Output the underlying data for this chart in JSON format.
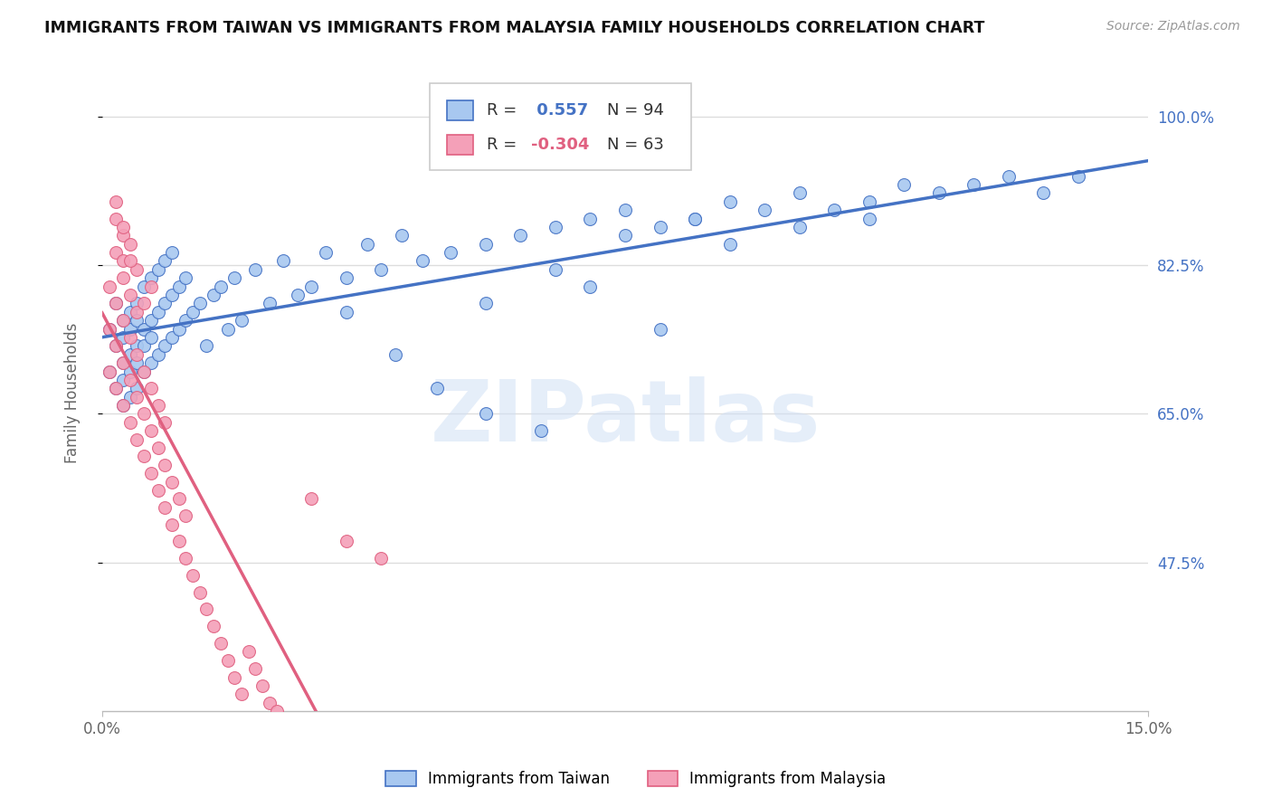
{
  "title": "IMMIGRANTS FROM TAIWAN VS IMMIGRANTS FROM MALAYSIA FAMILY HOUSEHOLDS CORRELATION CHART",
  "source": "Source: ZipAtlas.com",
  "ylabel": "Family Households",
  "xlim": [
    0.0,
    0.15
  ],
  "ylim": [
    0.3,
    1.05
  ],
  "yticks": [
    0.475,
    0.65,
    0.825,
    1.0
  ],
  "ytick_labels": [
    "47.5%",
    "65.0%",
    "82.5%",
    "100.0%"
  ],
  "xticks": [
    0.0,
    0.15
  ],
  "xtick_labels": [
    "0.0%",
    "15.0%"
  ],
  "taiwan_R": 0.557,
  "taiwan_N": 94,
  "malaysia_R": -0.304,
  "malaysia_N": 63,
  "taiwan_color": "#A8C8F0",
  "malaysia_color": "#F4A0B8",
  "taiwan_line_color": "#4472C4",
  "malaysia_line_color": "#E06080",
  "watermark_text": "ZIPatlas",
  "background_color": "#ffffff",
  "grid_color": "#dddddd",
  "taiwan_x": [
    0.001,
    0.001,
    0.002,
    0.002,
    0.002,
    0.003,
    0.003,
    0.003,
    0.003,
    0.003,
    0.004,
    0.004,
    0.004,
    0.004,
    0.004,
    0.005,
    0.005,
    0.005,
    0.005,
    0.005,
    0.006,
    0.006,
    0.006,
    0.006,
    0.007,
    0.007,
    0.007,
    0.007,
    0.008,
    0.008,
    0.008,
    0.009,
    0.009,
    0.009,
    0.01,
    0.01,
    0.01,
    0.011,
    0.011,
    0.012,
    0.012,
    0.013,
    0.014,
    0.015,
    0.016,
    0.017,
    0.018,
    0.019,
    0.02,
    0.022,
    0.024,
    0.026,
    0.028,
    0.03,
    0.032,
    0.035,
    0.038,
    0.04,
    0.043,
    0.046,
    0.05,
    0.055,
    0.06,
    0.065,
    0.07,
    0.075,
    0.08,
    0.085,
    0.09,
    0.095,
    0.1,
    0.105,
    0.11,
    0.115,
    0.12,
    0.125,
    0.13,
    0.135,
    0.14,
    0.035,
    0.042,
    0.048,
    0.055,
    0.063,
    0.07,
    0.08,
    0.09,
    0.1,
    0.11,
    0.055,
    0.065,
    0.075,
    0.085
  ],
  "taiwan_y": [
    0.7,
    0.75,
    0.68,
    0.73,
    0.78,
    0.66,
    0.71,
    0.76,
    0.69,
    0.74,
    0.67,
    0.72,
    0.77,
    0.7,
    0.75,
    0.68,
    0.73,
    0.78,
    0.71,
    0.76,
    0.7,
    0.75,
    0.8,
    0.73,
    0.71,
    0.76,
    0.81,
    0.74,
    0.72,
    0.77,
    0.82,
    0.73,
    0.78,
    0.83,
    0.74,
    0.79,
    0.84,
    0.75,
    0.8,
    0.76,
    0.81,
    0.77,
    0.78,
    0.73,
    0.79,
    0.8,
    0.75,
    0.81,
    0.76,
    0.82,
    0.78,
    0.83,
    0.79,
    0.8,
    0.84,
    0.81,
    0.85,
    0.82,
    0.86,
    0.83,
    0.84,
    0.85,
    0.86,
    0.87,
    0.88,
    0.89,
    0.87,
    0.88,
    0.9,
    0.89,
    0.91,
    0.89,
    0.9,
    0.92,
    0.91,
    0.92,
    0.93,
    0.91,
    0.93,
    0.77,
    0.72,
    0.68,
    0.65,
    0.63,
    0.8,
    0.75,
    0.85,
    0.87,
    0.88,
    0.78,
    0.82,
    0.86,
    0.88
  ],
  "malaysia_x": [
    0.001,
    0.001,
    0.001,
    0.002,
    0.002,
    0.002,
    0.002,
    0.003,
    0.003,
    0.003,
    0.003,
    0.003,
    0.004,
    0.004,
    0.004,
    0.004,
    0.005,
    0.005,
    0.005,
    0.005,
    0.006,
    0.006,
    0.006,
    0.007,
    0.007,
    0.007,
    0.008,
    0.008,
    0.008,
    0.009,
    0.009,
    0.009,
    0.01,
    0.01,
    0.011,
    0.011,
    0.012,
    0.012,
    0.013,
    0.014,
    0.015,
    0.016,
    0.017,
    0.018,
    0.019,
    0.02,
    0.021,
    0.022,
    0.023,
    0.024,
    0.025,
    0.03,
    0.035,
    0.04,
    0.002,
    0.003,
    0.004,
    0.005,
    0.006,
    0.007,
    0.002,
    0.003,
    0.004
  ],
  "malaysia_y": [
    0.7,
    0.75,
    0.8,
    0.68,
    0.73,
    0.78,
    0.84,
    0.66,
    0.71,
    0.76,
    0.81,
    0.86,
    0.64,
    0.69,
    0.74,
    0.79,
    0.62,
    0.67,
    0.72,
    0.77,
    0.6,
    0.65,
    0.7,
    0.58,
    0.63,
    0.68,
    0.56,
    0.61,
    0.66,
    0.54,
    0.59,
    0.64,
    0.52,
    0.57,
    0.5,
    0.55,
    0.48,
    0.53,
    0.46,
    0.44,
    0.42,
    0.4,
    0.38,
    0.36,
    0.34,
    0.32,
    0.37,
    0.35,
    0.33,
    0.31,
    0.3,
    0.55,
    0.5,
    0.48,
    0.88,
    0.83,
    0.85,
    0.82,
    0.78,
    0.8,
    0.9,
    0.87,
    0.83
  ]
}
